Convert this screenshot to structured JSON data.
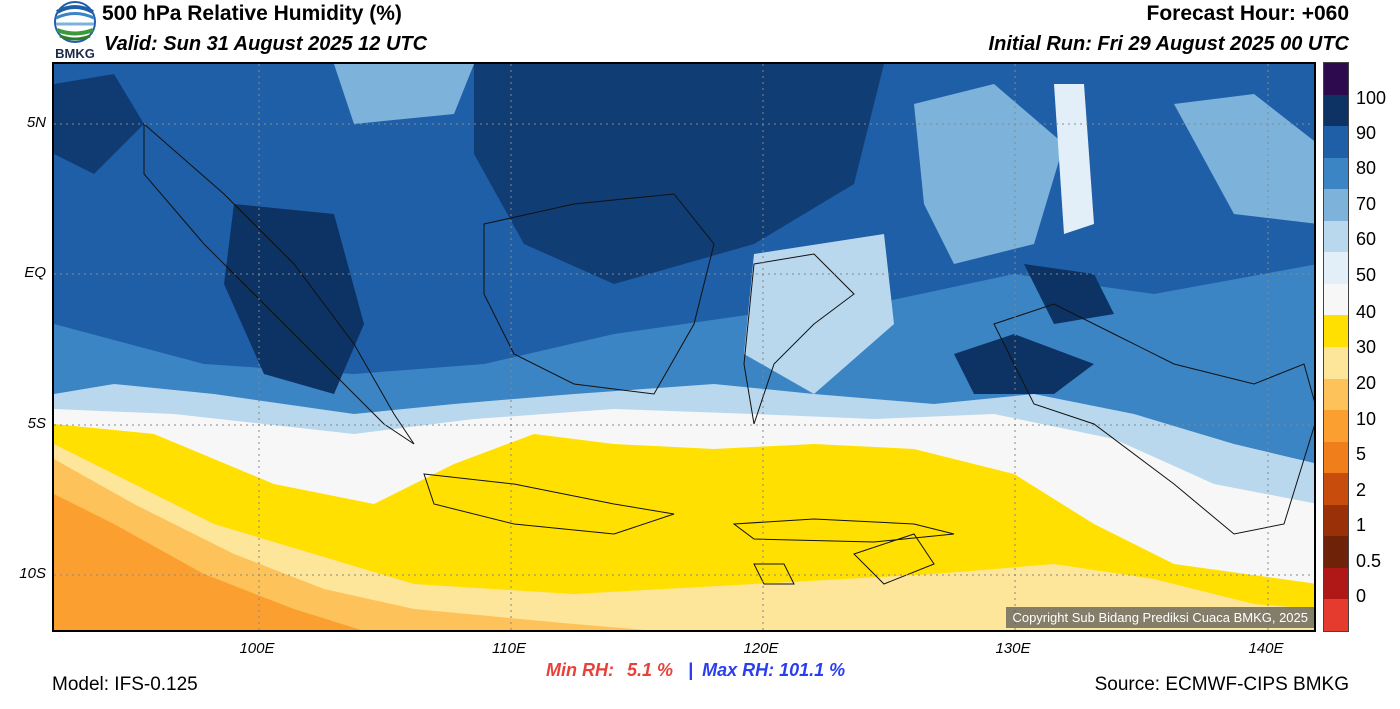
{
  "header": {
    "title": "500 hPa Relative Humidity (%)",
    "valid": "Valid: Sun 31 August 2025 12 UTC",
    "forecast_hour": "Forecast Hour: +060",
    "initial_run": "Initial Run: Fri 29 August 2025 00 UTC",
    "logo_text": "BMKG"
  },
  "map": {
    "lat_labels": [
      "5N",
      "EQ",
      "5S",
      "10S"
    ],
    "lon_labels": [
      "100E",
      "110E",
      "120E",
      "130E",
      "140E"
    ],
    "copyright": "Copyright Sub Bidang Prediksi Cuaca BMKG, 2025"
  },
  "colorbar": {
    "labels": [
      "100",
      "90",
      "80",
      "70",
      "60",
      "50",
      "40",
      "30",
      "20",
      "10",
      "5",
      "2",
      "1",
      "0.5",
      "0"
    ],
    "colors": [
      "#2d0a4e",
      "#0d3264",
      "#1f5fa8",
      "#3b85c4",
      "#7db3db",
      "#b9d8ee",
      "#e3eff8",
      "#f7f7f7",
      "#ffe000",
      "#fde59a",
      "#fdc35a",
      "#fba030",
      "#f07e1a",
      "#c84d0c",
      "#9a3008",
      "#6e2208",
      "#b01717",
      "#e53a2e"
    ]
  },
  "stats": {
    "min_label": "Min RH:",
    "min_value": "5.1 %",
    "separator": "|",
    "max_label": "Max RH: 101.1 %"
  },
  "footer": {
    "model": "Model: IFS-0.125",
    "source": "Source: ECMWF-CIPS BMKG"
  }
}
